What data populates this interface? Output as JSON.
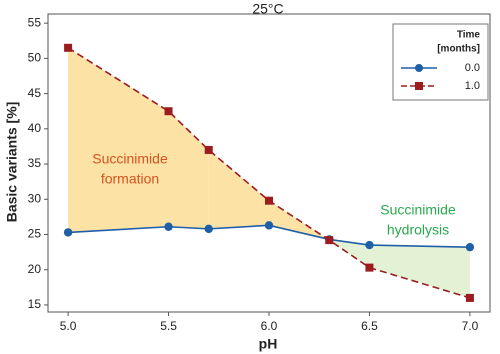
{
  "chart_data": {
    "type": "line",
    "title": "25°C",
    "xlabel": "pH",
    "ylabel": "Basic variants [%]",
    "xlim": [
      4.9,
      7.1
    ],
    "ylim": [
      14,
      56.3
    ],
    "xticks": [
      {
        "value": 5,
        "label": "5.0"
      },
      {
        "value": 5.5,
        "label": "5.5"
      },
      {
        "value": 6,
        "label": "6.0"
      },
      {
        "value": 6.5,
        "label": "6.5"
      },
      {
        "value": 7,
        "label": "7.0"
      }
    ],
    "yticks": [
      15,
      20,
      25,
      30,
      35,
      40,
      45,
      50,
      55
    ],
    "legend_title": [
      "Time",
      "[months]"
    ],
    "legend_position": "upper right",
    "fill_colors": {
      "above": "#fde2a6",
      "below": "#e3f2d5"
    },
    "series": [
      {
        "name": "0.0",
        "color": "#1f5fa8",
        "marker": "circle",
        "dashed": false,
        "x": [
          5.0,
          5.5,
          5.7,
          6.0,
          6.3,
          6.5,
          7.0
        ],
        "values": [
          25.3,
          26.1,
          25.8,
          26.3,
          24.3,
          23.5,
          23.2
        ]
      },
      {
        "name": "1.0",
        "color": "#9b1b1e",
        "marker": "square",
        "dashed": true,
        "x": [
          5.0,
          5.5,
          5.7,
          6.0,
          6.3,
          6.5,
          7.0
        ],
        "values": [
          51.5,
          42.5,
          37.0,
          29.8,
          24.2,
          20.3,
          16.0
        ]
      }
    ],
    "annotations": [
      {
        "lines": [
          "Succinimide",
          "formation"
        ],
        "color": "#d4531e"
      },
      {
        "lines": [
          "Succinimide",
          "hydrolysis"
        ],
        "color": "#2aa84f"
      }
    ]
  }
}
